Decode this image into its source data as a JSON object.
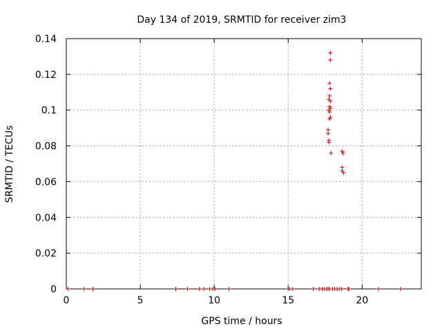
{
  "chart_data": {
    "type": "scatter",
    "title": "Day 134 of 2019, SRMTID for receiver zim3",
    "xlabel": "GPS time / hours",
    "ylabel": "SRMTID / TECUs",
    "xlim": [
      0,
      24
    ],
    "ylim": [
      0,
      0.14
    ],
    "xticks": [
      0,
      5,
      10,
      15,
      20
    ],
    "yticks": [
      0,
      0.02,
      0.04,
      0.06,
      0.08,
      0.1,
      0.12,
      0.14
    ],
    "xtick_labels": [
      "0",
      "5",
      "10",
      "15",
      "20"
    ],
    "ytick_labels": [
      "0",
      "0.02",
      "0.04",
      "0.06",
      "0.08",
      "0.1",
      "0.12",
      "0.14"
    ],
    "grid": true,
    "marker": "+",
    "marker_color": "#cc0000",
    "series": [
      {
        "name": "SRMTID",
        "points": [
          [
            0.1,
            0
          ],
          [
            1.2,
            0
          ],
          [
            1.8,
            0
          ],
          [
            7.4,
            0
          ],
          [
            8.2,
            0
          ],
          [
            9.0,
            0
          ],
          [
            9.3,
            0
          ],
          [
            9.7,
            0
          ],
          [
            9.9,
            0
          ],
          [
            10.05,
            0
          ],
          [
            11.0,
            0
          ],
          [
            15.0,
            0
          ],
          [
            15.1,
            0
          ],
          [
            15.3,
            0
          ],
          [
            16.7,
            0
          ],
          [
            17.1,
            0
          ],
          [
            17.3,
            0
          ],
          [
            17.45,
            0
          ],
          [
            17.6,
            0
          ],
          [
            17.7,
            0
          ],
          [
            17.8,
            0
          ],
          [
            18.0,
            0
          ],
          [
            18.15,
            0
          ],
          [
            18.3,
            0
          ],
          [
            18.45,
            0
          ],
          [
            18.6,
            0
          ],
          [
            19.05,
            0
          ],
          [
            19.1,
            0
          ],
          [
            21.1,
            0
          ],
          [
            22.6,
            0
          ],
          [
            17.85,
            0.132
          ],
          [
            17.85,
            0.128
          ],
          [
            17.8,
            0.115
          ],
          [
            17.85,
            0.112
          ],
          [
            17.8,
            0.108
          ],
          [
            17.85,
            0.105
          ],
          [
            17.75,
            0.106
          ],
          [
            17.8,
            0.102
          ],
          [
            17.85,
            0.101
          ],
          [
            17.75,
            0.1
          ],
          [
            17.8,
            0.099
          ],
          [
            17.85,
            0.096
          ],
          [
            17.8,
            0.095
          ],
          [
            17.7,
            0.089
          ],
          [
            17.7,
            0.087
          ],
          [
            17.75,
            0.083
          ],
          [
            17.75,
            0.082
          ],
          [
            17.9,
            0.076
          ],
          [
            18.65,
            0.077
          ],
          [
            18.7,
            0.076
          ],
          [
            18.65,
            0.068
          ],
          [
            18.65,
            0.066
          ],
          [
            18.75,
            0.065
          ]
        ]
      }
    ]
  }
}
